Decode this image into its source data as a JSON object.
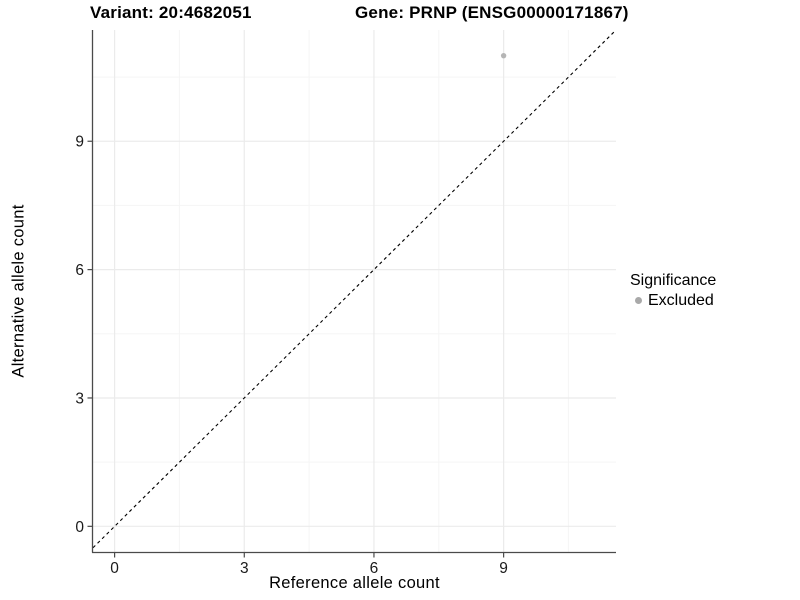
{
  "figure": {
    "background": "#ffffff"
  },
  "chart_data": {
    "type": "scatter",
    "titles": {
      "left": "Variant: 20:4682051",
      "right": "Gene: PRNP (ENSG00000171867)"
    },
    "xlabel": "Reference allele count",
    "ylabel": "Alternative allele count",
    "xlim": [
      -0.5,
      11.6
    ],
    "ylim": [
      -0.6,
      11.6
    ],
    "xticks": [
      0,
      3,
      6,
      9
    ],
    "yticks": [
      0,
      3,
      6,
      9
    ],
    "minor_xticks": [
      1.5,
      4.5,
      7.5,
      10.5
    ],
    "minor_yticks": [
      1.5,
      4.5,
      7.5,
      10.5
    ],
    "grid": true,
    "series": [
      {
        "name": "Excluded",
        "color": "#b5b5b5",
        "points": [
          {
            "x": 9,
            "y": 11
          }
        ]
      }
    ],
    "reference_line": {
      "type": "identity",
      "equation": "y = x",
      "style": "dashed",
      "color": "#000000"
    },
    "legend": {
      "title": "Significance",
      "position": "right",
      "entries": [
        {
          "label": "Excluded",
          "color": "#a9a9a9"
        }
      ]
    },
    "style": {
      "axis_line_color": "#4a4a4a",
      "tick_color": "#4a4a4a",
      "tick_label_color": "#1a1a1a",
      "major_grid_color": "#ebebeb",
      "minor_grid_color": "#f5f5f5",
      "point_radius": 2.7
    }
  }
}
